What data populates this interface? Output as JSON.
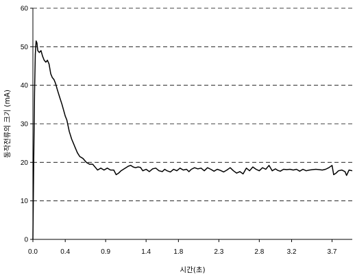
{
  "chart_data": {
    "type": "line",
    "xlabel": "시간(초)",
    "ylabel": "동작전류의 크기 (mA)",
    "xlim": [
      0,
      3.95
    ],
    "ylim": [
      0,
      60
    ],
    "x_ticks": [
      "0.0",
      "0.4",
      "0.9",
      "1.4",
      "1.8",
      "2.3",
      "2.8",
      "3.2",
      "3.7"
    ],
    "x_tick_values": [
      0.0,
      0.4,
      0.9,
      1.4,
      1.8,
      2.3,
      2.8,
      3.2,
      3.7
    ],
    "y_ticks": [
      "0",
      "10",
      "20",
      "30",
      "40",
      "50",
      "60"
    ],
    "y_tick_values": [
      0,
      10,
      20,
      30,
      40,
      50,
      60
    ],
    "grid": "horizontal dashed",
    "line_color": "#000000",
    "series": [
      {
        "x": [
          0.0,
          0.01,
          0.02,
          0.03,
          0.04,
          0.05,
          0.06,
          0.08,
          0.1,
          0.12,
          0.14,
          0.16,
          0.18,
          0.2,
          0.22,
          0.24,
          0.26,
          0.28,
          0.3,
          0.33,
          0.36,
          0.4,
          0.42,
          0.45,
          0.48,
          0.5,
          0.52,
          0.55,
          0.58,
          0.62,
          0.66,
          0.7,
          0.74,
          0.78,
          0.8,
          0.84,
          0.88,
          0.92,
          0.96,
          1.0,
          1.03,
          1.06,
          1.09,
          1.12,
          1.15,
          1.18,
          1.21,
          1.24,
          1.27,
          1.3,
          1.33,
          1.36,
          1.4,
          1.44,
          1.48,
          1.52,
          1.56,
          1.6,
          1.63,
          1.66,
          1.7,
          1.74,
          1.78,
          1.82,
          1.86,
          1.9,
          1.93,
          1.96,
          2.0,
          2.04,
          2.08,
          2.12,
          2.16,
          2.2,
          2.24,
          2.28,
          2.32,
          2.36,
          2.4,
          2.44,
          2.48,
          2.52,
          2.56,
          2.6,
          2.64,
          2.68,
          2.72,
          2.76,
          2.8,
          2.84,
          2.88,
          2.92,
          2.96,
          3.0,
          3.03,
          3.06,
          3.1,
          3.14,
          3.18,
          3.22,
          3.26,
          3.3,
          3.34,
          3.38,
          3.42,
          3.46,
          3.5,
          3.54,
          3.58,
          3.62,
          3.66,
          3.7,
          3.72,
          3.75,
          3.78,
          3.82,
          3.86,
          3.88,
          3.91,
          3.95
        ],
        "y": [
          0,
          20,
          38,
          48,
          51.5,
          51,
          49,
          48.5,
          49,
          47.5,
          46.5,
          46,
          46.5,
          45.5,
          43,
          42,
          41.5,
          40.5,
          39,
          37,
          35,
          32,
          31,
          28,
          26,
          25,
          24,
          22.5,
          21.5,
          21,
          20,
          19.5,
          19.5,
          18.5,
          18,
          18.5,
          18,
          18.5,
          18,
          18,
          16.8,
          17.2,
          17.8,
          18.2,
          18.6,
          19,
          19.2,
          18.8,
          18.6,
          18.8,
          18.7,
          17.8,
          18.2,
          17.6,
          18.3,
          18.5,
          17.8,
          17.6,
          18.2,
          17.8,
          17.5,
          18.2,
          17.8,
          18.5,
          18,
          18.2,
          17.6,
          18.2,
          18.6,
          18.3,
          18.5,
          17.8,
          18.6,
          18.2,
          17.7,
          18.2,
          17.9,
          17.5,
          18,
          18.6,
          17.8,
          17.2,
          17.6,
          17,
          18.5,
          17.8,
          18.8,
          18.2,
          17.8,
          18.6,
          18.2,
          19.2,
          17.8,
          18.3,
          17.9,
          17.7,
          18.2,
          18.1,
          18.2,
          18,
          18.2,
          17.7,
          18.2,
          17.8,
          18,
          18.1,
          18.2,
          18.1,
          18,
          18.2,
          18.6,
          19.2,
          16.8,
          17.2,
          17.8,
          18,
          17.6,
          16.6,
          18,
          17.8
        ]
      }
    ]
  }
}
